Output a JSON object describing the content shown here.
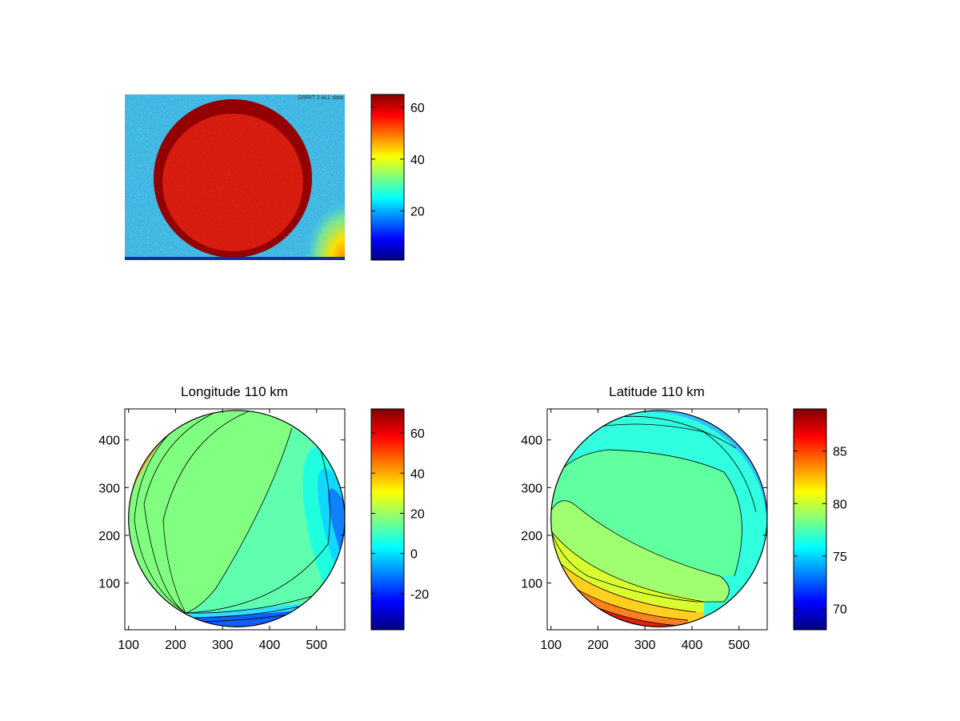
{
  "chart_data": [
    {
      "type": "heatmap",
      "title": "",
      "watermark": "GRRIT 2 ALL data",
      "content": "all-sky image: saturated dark-red disc on cyan background, bright patch at lower-right",
      "colorbar": {
        "range": [
          1,
          65
        ],
        "ticks": [
          20,
          40,
          60
        ]
      }
    },
    {
      "type": "heatmap",
      "style": "filled-contour",
      "title": "Longitude 110 km",
      "xlabel": "",
      "ylabel": "",
      "xlim": [
        92,
        560
      ],
      "ylim": [
        2,
        465
      ],
      "xticks": [
        100,
        200,
        300,
        400,
        500
      ],
      "yticks": [
        100,
        200,
        300,
        400
      ],
      "circle": {
        "cx": 330,
        "cy": 235,
        "r": 230
      },
      "colorbar": {
        "range": [
          -38,
          72
        ],
        "ticks": [
          -20,
          0,
          20,
          40,
          60
        ]
      }
    },
    {
      "type": "heatmap",
      "style": "filled-contour",
      "title": "Latitude 110 km",
      "xlabel": "",
      "ylabel": "",
      "xlim": [
        92,
        560
      ],
      "ylim": [
        2,
        465
      ],
      "xticks": [
        100,
        200,
        300,
        400,
        500
      ],
      "yticks": [
        100,
        200,
        300,
        400
      ],
      "circle": {
        "cx": 330,
        "cy": 235,
        "r": 230
      },
      "colorbar": {
        "range": [
          68,
          89
        ],
        "ticks": [
          70,
          75,
          80,
          85
        ]
      }
    }
  ]
}
